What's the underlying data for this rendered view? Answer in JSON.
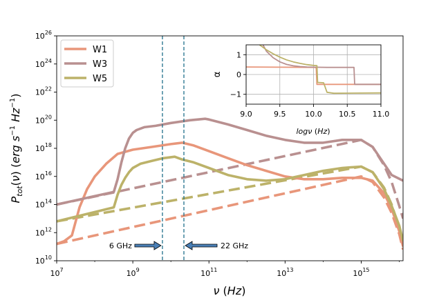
{
  "chart_data": {
    "type": "line",
    "main": {
      "xlabel": "ν (Hz)",
      "ylabel": "P_tot(ν) (erg s⁻¹ Hz⁻¹)",
      "xscale": "log",
      "yscale": "log",
      "xlim_log10": [
        7,
        16.1
      ],
      "ylim_log10": [
        10,
        26
      ],
      "xticks": [
        {
          "base": "10",
          "exp": "7",
          "value": 7
        },
        {
          "base": "10",
          "exp": "9",
          "value": 9
        },
        {
          "base": "10",
          "exp": "11",
          "value": 11
        },
        {
          "base": "10",
          "exp": "13",
          "value": 13
        },
        {
          "base": "10",
          "exp": "15",
          "value": 15
        }
      ],
      "yticks": [
        {
          "base": "10",
          "exp": "10",
          "value": 10
        },
        {
          "base": "10",
          "exp": "12",
          "value": 12
        },
        {
          "base": "10",
          "exp": "14",
          "value": 14
        },
        {
          "base": "10",
          "exp": "16",
          "value": 16
        },
        {
          "base": "10",
          "exp": "18",
          "value": 18
        },
        {
          "base": "10",
          "exp": "20",
          "value": 20
        },
        {
          "base": "10",
          "exp": "22",
          "value": 22
        },
        {
          "base": "10",
          "exp": "24",
          "value": 24
        },
        {
          "base": "10",
          "exp": "26",
          "value": 26
        }
      ],
      "legend": {
        "location": "upper-left",
        "entries": [
          "W1",
          "W3",
          "W5"
        ]
      },
      "series": [
        {
          "name": "W1",
          "style": "solid",
          "color": "#e8967a",
          "x": [
            7.0,
            7.2,
            7.4,
            7.6,
            7.8,
            8.0,
            8.3,
            8.6,
            9.0,
            9.5,
            10.0,
            10.3,
            10.6,
            11.0,
            11.5,
            12.0,
            12.5,
            13.0,
            13.5,
            14.0,
            14.5,
            15.0,
            15.3,
            15.6,
            15.8,
            16.0,
            16.1
          ],
          "y": [
            11.2,
            11.4,
            11.8,
            13.8,
            15.1,
            16.0,
            16.9,
            17.6,
            17.9,
            18.1,
            18.3,
            18.4,
            18.2,
            17.8,
            17.3,
            16.8,
            16.4,
            16.0,
            15.8,
            15.8,
            15.9,
            15.9,
            15.7,
            14.8,
            13.7,
            12.1,
            11.0
          ]
        },
        {
          "name": "W3",
          "style": "solid",
          "color": "#b99090",
          "x": [
            7.0,
            8.5,
            8.6,
            8.7,
            8.8,
            8.9,
            9.0,
            9.1,
            9.3,
            9.6,
            10.0,
            10.5,
            10.9,
            11.0,
            11.5,
            12.0,
            12.5,
            13.0,
            13.5,
            14.0,
            14.5,
            15.0,
            15.3,
            15.6,
            15.8,
            16.1
          ],
          "y": [
            14.0,
            14.9,
            15.8,
            17.0,
            18.0,
            18.7,
            19.1,
            19.3,
            19.5,
            19.6,
            19.8,
            20.0,
            20.1,
            20.05,
            19.7,
            19.3,
            18.9,
            18.6,
            18.4,
            18.4,
            18.6,
            18.6,
            18.1,
            16.9,
            16.1,
            15.7
          ]
        },
        {
          "name": "W5",
          "style": "solid",
          "color": "#bcb269",
          "x": [
            7.0,
            8.5,
            8.6,
            8.7,
            8.8,
            8.9,
            9.0,
            9.2,
            9.5,
            9.8,
            10.1,
            10.3,
            10.6,
            11.0,
            11.5,
            12.0,
            12.5,
            13.0,
            13.5,
            14.0,
            14.5,
            15.0,
            15.3,
            15.6,
            15.8,
            16.0,
            16.1
          ],
          "y": [
            12.8,
            13.8,
            14.7,
            15.4,
            15.9,
            16.3,
            16.6,
            16.9,
            17.1,
            17.3,
            17.4,
            17.2,
            17.0,
            16.6,
            16.1,
            15.8,
            15.7,
            15.8,
            16.1,
            16.4,
            16.6,
            16.7,
            16.3,
            15.1,
            13.9,
            12.5,
            11.4
          ]
        },
        {
          "name": "W1",
          "style": "dashed",
          "color": "#e8967a",
          "x": [
            7.0,
            15.0,
            15.3,
            15.6,
            15.8,
            16.0,
            16.1
          ],
          "y": [
            11.2,
            16.0,
            15.6,
            14.5,
            13.4,
            11.9,
            10.8
          ]
        },
        {
          "name": "W3",
          "style": "dashed",
          "color": "#b99090",
          "x": [
            7.0,
            15.0,
            15.3,
            15.6,
            15.8,
            16.0,
            16.1
          ],
          "y": [
            14.0,
            18.6,
            18.1,
            16.8,
            15.6,
            13.9,
            13.0
          ]
        },
        {
          "name": "W5",
          "style": "dashed",
          "color": "#bcb269",
          "x": [
            7.0,
            15.0,
            15.3,
            15.6,
            15.8,
            16.0,
            16.1
          ],
          "y": [
            12.8,
            16.7,
            16.3,
            15.2,
            14.0,
            12.3,
            11.4
          ]
        }
      ],
      "vlines": [
        {
          "x_log10": 9.778,
          "label": "6 GHz"
        },
        {
          "x_log10": 10.342,
          "label": "22 GHz"
        }
      ]
    },
    "inset": {
      "xlabel": "logν (Hz)",
      "ylabel": "α",
      "xlim": [
        9.0,
        11.0
      ],
      "ylim": [
        -1.5,
        1.5
      ],
      "xticks": [
        "9.0",
        "9.5",
        "10.0",
        "10.5",
        "11.0"
      ],
      "yticks": [
        "1",
        "0",
        "−1"
      ],
      "grid": true,
      "series": [
        {
          "name": "W1",
          "color": "#e8967a",
          "x": [
            9.0,
            10.0,
            10.02,
            10.03,
            10.04,
            10.05,
            10.1,
            10.2,
            10.6,
            11.0
          ],
          "y": [
            0.38,
            0.36,
            0.36,
            0.35,
            0.34,
            -0.5,
            -0.5,
            -0.5,
            -0.5,
            -0.5
          ]
        },
        {
          "name": "W3",
          "color": "#b99090",
          "x": [
            9.25,
            9.3,
            9.4,
            9.5,
            9.6,
            9.7,
            9.8,
            9.9,
            10.0,
            10.2,
            10.4,
            10.58,
            10.6,
            10.61,
            11.0
          ],
          "y": [
            1.5,
            1.18,
            0.85,
            0.64,
            0.51,
            0.44,
            0.4,
            0.38,
            0.37,
            0.36,
            0.36,
            0.36,
            0.36,
            -0.5,
            -0.5
          ]
        },
        {
          "name": "W5",
          "color": "#bcb269",
          "x": [
            9.2,
            9.3,
            9.4,
            9.5,
            9.6,
            9.7,
            9.8,
            9.9,
            10.0,
            10.05,
            10.06,
            10.15,
            10.2,
            10.3,
            11.0
          ],
          "y": [
            1.5,
            1.25,
            1.05,
            0.88,
            0.74,
            0.64,
            0.56,
            0.5,
            0.46,
            0.45,
            -0.4,
            -0.42,
            -0.9,
            -0.95,
            -0.93
          ]
        }
      ]
    }
  }
}
